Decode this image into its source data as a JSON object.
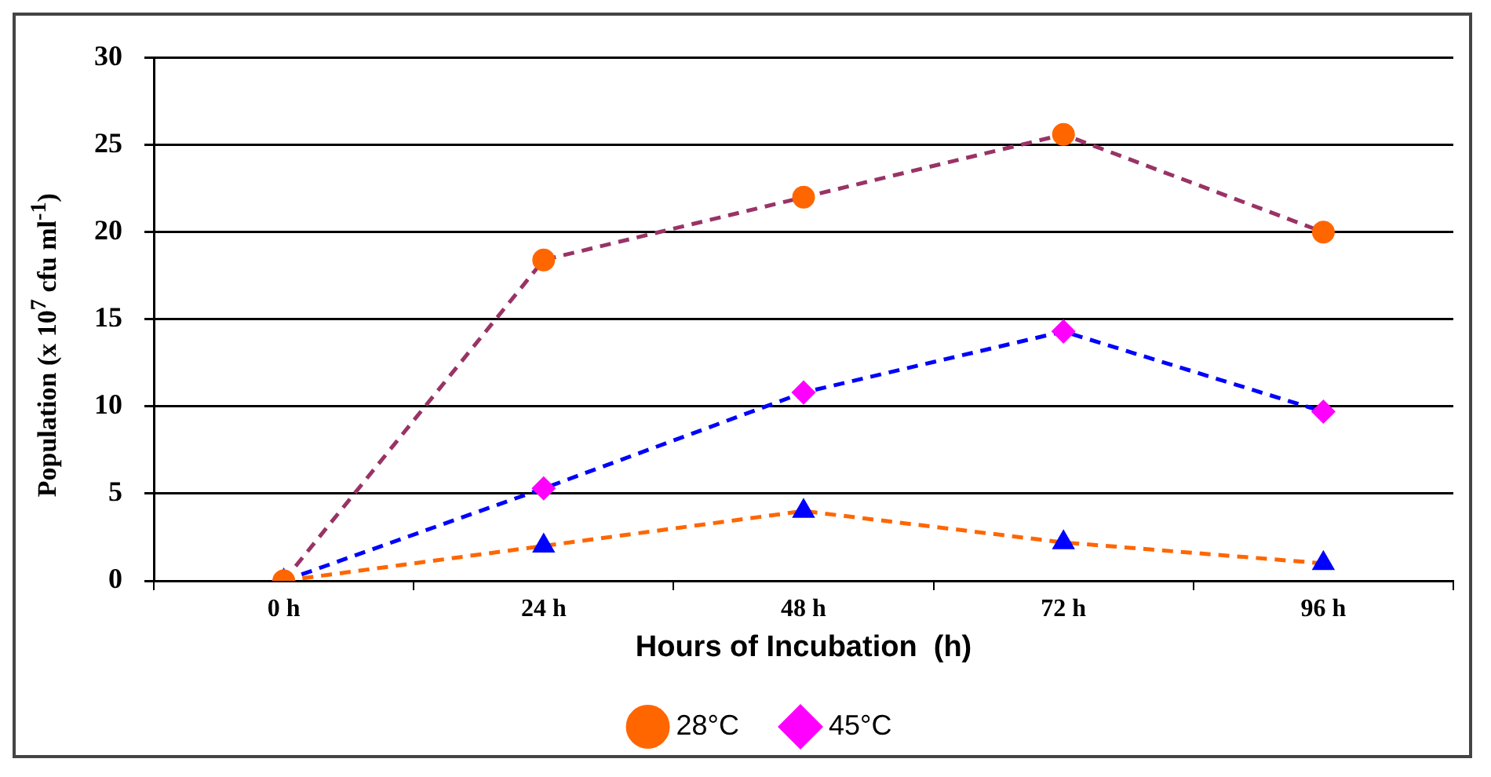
{
  "chart_data": {
    "type": "line",
    "xlabel": "Hours of Incubation  (h)",
    "ylabel": "Population (x 10$^{7}$ cfu ml$^{-1}$)",
    "categories": [
      "0 h",
      "24 h",
      "48 h",
      "72 h",
      "96 h"
    ],
    "series": [
      {
        "name": "28°C",
        "color": "#993366",
        "colors": [
          "#ff6600",
          "#ff6600",
          "#ff6600",
          "#ff6600",
          "#ff6600"
        ],
        "marker": "circle",
        "line_style": "dashed",
        "values": [
          0,
          18.4,
          22,
          25.6,
          20
        ]
      },
      {
        "name": "45°C",
        "color": "#0000ff",
        "colors": [
          "#ff00ff",
          "#ff00ff",
          "#ff00ff",
          "#ff00ff",
          "#ff00ff"
        ],
        "marker": "diamond",
        "line_style": "dashed",
        "values": [
          0,
          5.3,
          10.8,
          14.3,
          9.7
        ]
      },
      {
        "color": "#ff6600",
        "colors": [
          "#0000ff",
          "#0000ff",
          "#0000ff",
          "#0000ff",
          "#0000ff"
        ],
        "marker": "triangle",
        "line_style": "dashed",
        "values": [
          0,
          2,
          4,
          2.2,
          1
        ]
      }
    ],
    "ylim": [
      0,
      30
    ],
    "yticks": [
      0,
      5,
      10,
      15,
      20,
      25,
      30
    ],
    "grid": "y",
    "legend": "bottom"
  }
}
